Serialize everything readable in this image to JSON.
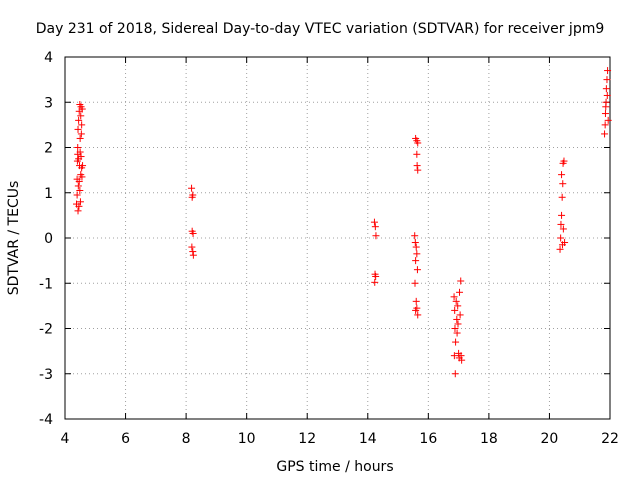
{
  "chart_data": {
    "type": "scatter",
    "title": "Day 231 of 2018, Sidereal Day-to-day VTEC variation (SDTVAR) for receiver jpm9",
    "xlabel": "GPS time / hours",
    "ylabel": "SDTVAR / TECUs",
    "xlim": [
      4,
      22
    ],
    "ylim": [
      -4,
      4
    ],
    "x_ticks": [
      4,
      6,
      8,
      10,
      12,
      14,
      16,
      18,
      20,
      22
    ],
    "y_ticks": [
      -4,
      -3,
      -2,
      -1,
      0,
      1,
      2,
      3,
      4
    ],
    "grid": true,
    "marker": "+",
    "color": "#ff0000",
    "series": [
      {
        "name": "SDTVAR",
        "points": [
          [
            4.38,
            0.75
          ],
          [
            4.4,
            0.95
          ],
          [
            4.4,
            1.3
          ],
          [
            4.41,
            1.7
          ],
          [
            4.42,
            1.85
          ],
          [
            4.42,
            2.0
          ],
          [
            4.43,
            2.4
          ],
          [
            4.43,
            0.6
          ],
          [
            4.44,
            1.15
          ],
          [
            4.45,
            2.6
          ],
          [
            4.45,
            1.75
          ],
          [
            4.46,
            0.7
          ],
          [
            4.47,
            2.8
          ],
          [
            4.47,
            1.25
          ],
          [
            4.48,
            1.6
          ],
          [
            4.49,
            2.95
          ],
          [
            4.49,
            1.05
          ],
          [
            4.5,
            2.2
          ],
          [
            4.5,
            1.9
          ],
          [
            4.51,
            0.8
          ],
          [
            4.52,
            2.7
          ],
          [
            4.52,
            1.4
          ],
          [
            4.53,
            2.9
          ],
          [
            4.53,
            1.8
          ],
          [
            4.54,
            2.3
          ],
          [
            4.55,
            1.55
          ],
          [
            4.55,
            2.5
          ],
          [
            4.56,
            1.35
          ],
          [
            4.57,
            2.85
          ],
          [
            4.58,
            1.6
          ],
          [
            8.18,
            1.1
          ],
          [
            8.2,
            0.9
          ],
          [
            8.22,
            0.95
          ],
          [
            8.2,
            0.15
          ],
          [
            8.23,
            0.1
          ],
          [
            8.19,
            -0.2
          ],
          [
            8.22,
            -0.3
          ],
          [
            8.24,
            -0.38
          ],
          [
            14.22,
            0.35
          ],
          [
            14.25,
            0.25
          ],
          [
            14.27,
            0.05
          ],
          [
            14.24,
            -0.8
          ],
          [
            14.26,
            -0.85
          ],
          [
            14.23,
            -0.98
          ],
          [
            15.58,
            2.2
          ],
          [
            15.62,
            2.15
          ],
          [
            15.65,
            2.1
          ],
          [
            15.62,
            1.85
          ],
          [
            15.63,
            1.6
          ],
          [
            15.65,
            1.5
          ],
          [
            15.55,
            0.05
          ],
          [
            15.57,
            -0.1
          ],
          [
            15.6,
            -0.2
          ],
          [
            15.62,
            -0.35
          ],
          [
            15.58,
            -0.5
          ],
          [
            15.64,
            -0.7
          ],
          [
            15.56,
            -1.0
          ],
          [
            15.6,
            -1.4
          ],
          [
            15.62,
            -1.55
          ],
          [
            15.58,
            -1.6
          ],
          [
            15.65,
            -1.7
          ],
          [
            16.85,
            -1.3
          ],
          [
            16.87,
            -1.6
          ],
          [
            16.88,
            -2.0
          ],
          [
            16.9,
            -2.3
          ],
          [
            16.86,
            -2.6
          ],
          [
            16.89,
            -3.0
          ],
          [
            16.92,
            -1.4
          ],
          [
            16.94,
            -1.8
          ],
          [
            16.95,
            -2.1
          ],
          [
            16.97,
            -1.5
          ],
          [
            16.98,
            -1.9
          ],
          [
            17.0,
            -2.55
          ],
          [
            17.02,
            -2.65
          ],
          [
            17.03,
            -1.2
          ],
          [
            17.05,
            -1.7
          ],
          [
            17.07,
            -0.95
          ],
          [
            17.08,
            -2.6
          ],
          [
            17.1,
            -2.7
          ],
          [
            20.35,
            -0.25
          ],
          [
            20.37,
            0.0
          ],
          [
            20.38,
            0.3
          ],
          [
            20.4,
            0.5
          ],
          [
            20.42,
            0.9
          ],
          [
            20.44,
            1.2
          ],
          [
            20.4,
            1.4
          ],
          [
            20.45,
            1.65
          ],
          [
            20.48,
            1.7
          ],
          [
            20.43,
            -0.15
          ],
          [
            20.46,
            0.2
          ],
          [
            20.5,
            -0.1
          ],
          [
            21.82,
            2.3
          ],
          [
            21.84,
            2.5
          ],
          [
            21.85,
            2.75
          ],
          [
            21.87,
            3.0
          ],
          [
            21.88,
            3.3
          ],
          [
            21.9,
            3.5
          ],
          [
            21.92,
            3.7
          ],
          [
            21.86,
            2.9
          ],
          [
            21.91,
            3.15
          ],
          [
            21.94,
            2.6
          ]
        ]
      }
    ]
  }
}
